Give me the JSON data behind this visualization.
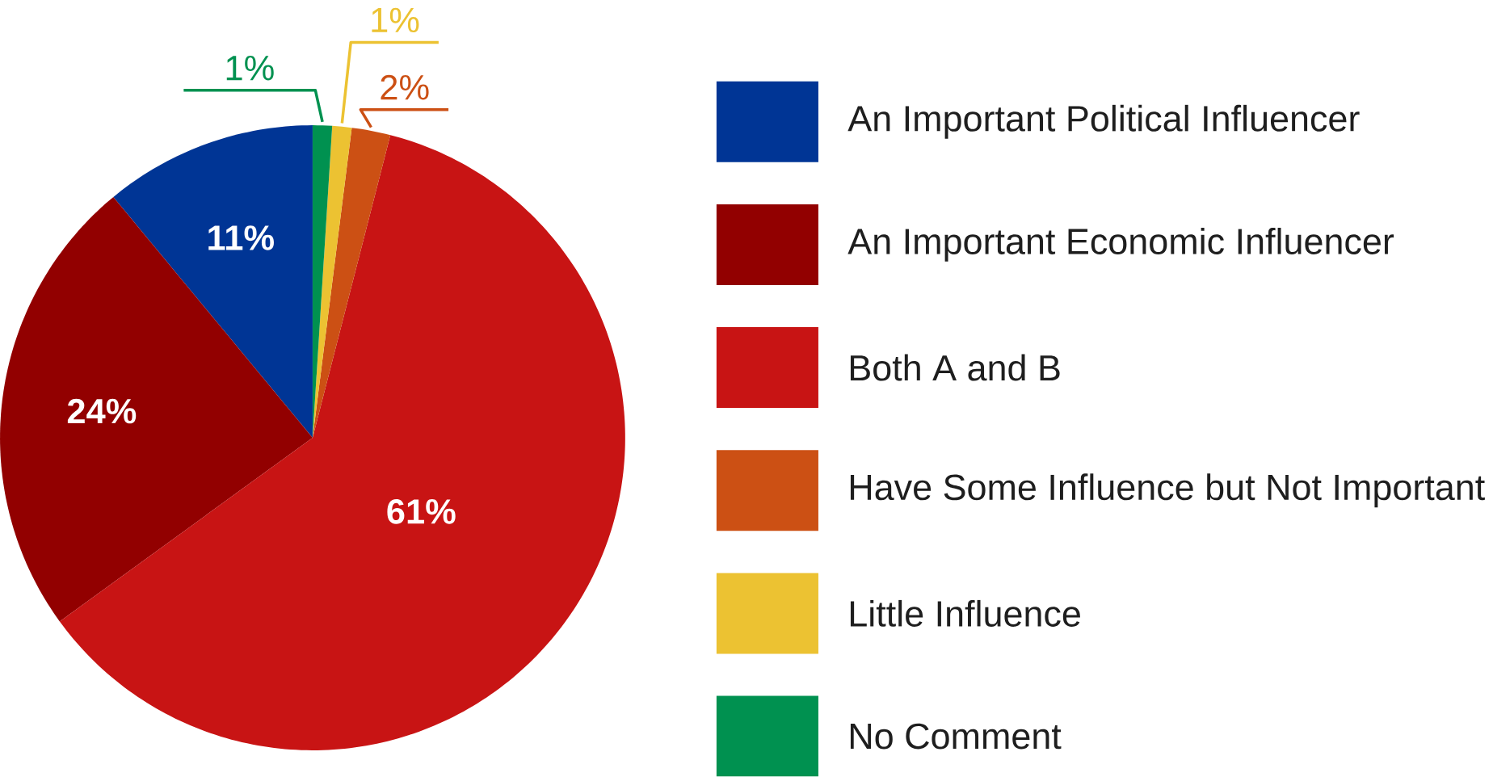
{
  "chart_data": {
    "type": "pie",
    "categories": [
      "An Important Political Influencer",
      "An Important Economic Influencer",
      "Both A and B",
      "Have Some Influence but Not Important",
      "Little Influence",
      "No Comment"
    ],
    "values": [
      11,
      24,
      61,
      2,
      1,
      1
    ],
    "colors": [
      "#003595",
      "#920000",
      "#c81414",
      "#cc5014",
      "#ecc232",
      "#009150"
    ],
    "value_labels": [
      "11%",
      "24%",
      "61%",
      "2%",
      "1%",
      "1%"
    ],
    "legend": "right"
  }
}
